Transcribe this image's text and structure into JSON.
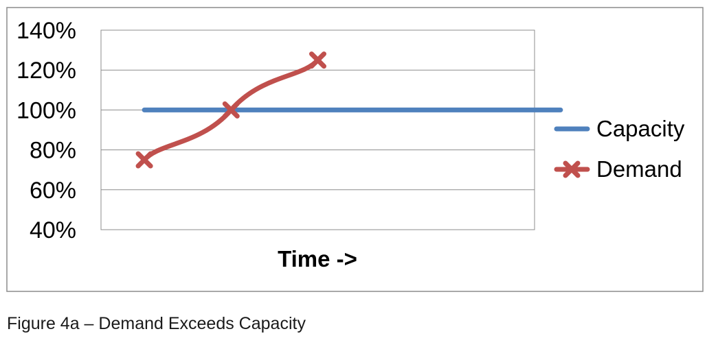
{
  "caption": "Figure 4a – Demand Exceeds Capacity",
  "chart_data": {
    "type": "line",
    "title": "",
    "xlabel": "Time ->",
    "ylabel": "",
    "ylim": [
      40,
      140
    ],
    "y_ticks": [
      140,
      120,
      100,
      80,
      60,
      40
    ],
    "y_tick_suffix": "%",
    "x_slots": 5,
    "grid": true,
    "legend_position": "right",
    "series": [
      {
        "name": "Capacity",
        "color": "#4f81bd",
        "marker": "none",
        "x": [
          0,
          4.8
        ],
        "values": [
          100,
          100
        ]
      },
      {
        "name": "Demand",
        "color": "#c0504d",
        "marker": "x",
        "smooth": true,
        "x": [
          0,
          1,
          2
        ],
        "values": [
          75,
          100,
          125
        ]
      }
    ]
  }
}
